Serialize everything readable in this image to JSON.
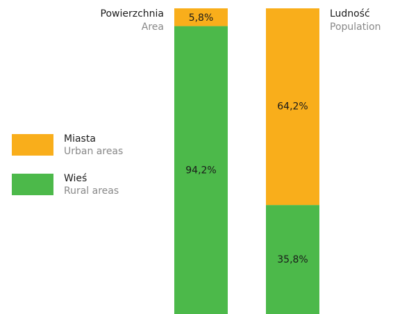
{
  "chart_data": {
    "type": "stacked_bar",
    "categories": [
      "Powierzchnia",
      "Ludność"
    ],
    "category_subtitles": [
      "Area",
      "Population"
    ],
    "series": [
      {
        "name": "Miasta",
        "subtitle": "Urban areas",
        "color": "#f9ae1b",
        "values": [
          5.8,
          64.2
        ],
        "value_labels": [
          "5,8%",
          "64,2%"
        ]
      },
      {
        "name": "Wieś",
        "subtitle": "Rural areas",
        "color": "#4cb94a",
        "values": [
          94.2,
          35.8
        ],
        "value_labels": [
          "94,2%",
          "35,8%"
        ]
      }
    ],
    "legend": "left"
  }
}
